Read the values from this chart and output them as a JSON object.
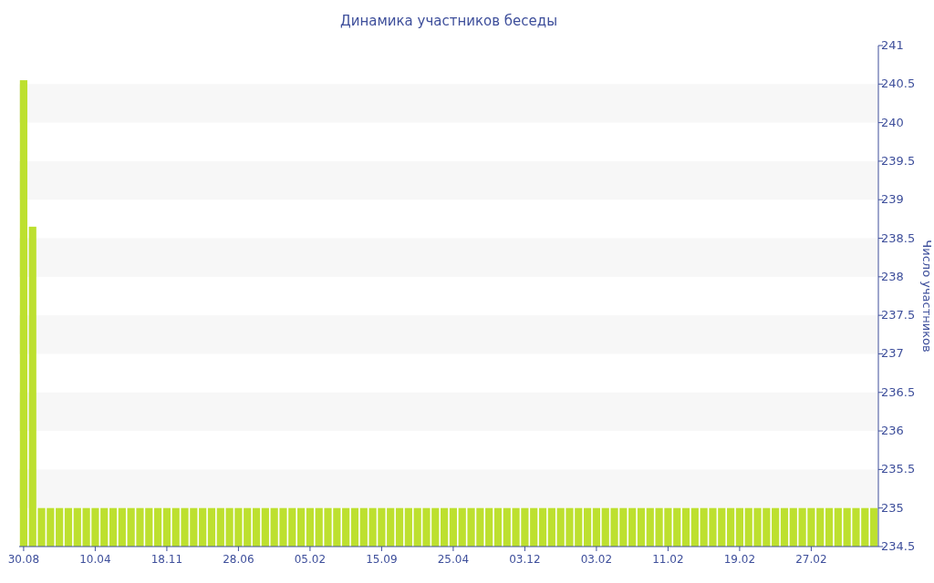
{
  "chart_data": {
    "type": "bar",
    "title": "Динамика участников беседы",
    "ylabel": "Число участников",
    "categories": [
      "30.08",
      null,
      null,
      null,
      null,
      null,
      null,
      null,
      "10.04",
      null,
      null,
      null,
      null,
      null,
      null,
      null,
      "18.11",
      null,
      null,
      null,
      null,
      null,
      null,
      null,
      "28.06",
      null,
      null,
      null,
      null,
      null,
      null,
      null,
      "05.02",
      null,
      null,
      null,
      null,
      null,
      null,
      null,
      "15.09",
      null,
      null,
      null,
      null,
      null,
      null,
      null,
      "25.04",
      null,
      null,
      null,
      null,
      null,
      null,
      null,
      "03.12",
      null,
      null,
      null,
      null,
      null,
      null,
      null,
      "03.02",
      null,
      null,
      null,
      null,
      null,
      null,
      null,
      "11.02",
      null,
      null,
      null,
      null,
      null,
      null,
      null,
      "19.02",
      null,
      null,
      null,
      null,
      null,
      null,
      null,
      "27.02",
      null,
      null,
      null,
      null,
      null,
      null,
      null
    ],
    "values": [
      240.55,
      238.65,
      235,
      235,
      235,
      235,
      235,
      235,
      235,
      235,
      235,
      235,
      235,
      235,
      235,
      235,
      235,
      235,
      235,
      235,
      235,
      235,
      235,
      235,
      235,
      235,
      235,
      235,
      235,
      235,
      235,
      235,
      235,
      235,
      235,
      235,
      235,
      235,
      235,
      235,
      235,
      235,
      235,
      235,
      235,
      235,
      235,
      235,
      235,
      235,
      235,
      235,
      235,
      235,
      235,
      235,
      235,
      235,
      235,
      235,
      235,
      235,
      235,
      235,
      235,
      235,
      235,
      235,
      235,
      235,
      235,
      235,
      235,
      235,
      235,
      235,
      235,
      235,
      235,
      235,
      235,
      235,
      235,
      235,
      235,
      235,
      235,
      235,
      235,
      235,
      235,
      235,
      235,
      235,
      235,
      235
    ],
    "color": "#bde02f",
    "ylim": [
      234.5,
      241
    ],
    "yticks": [
      234.5,
      235,
      235.5,
      236,
      236.5,
      237,
      237.5,
      238,
      238.5,
      239,
      239.5,
      240,
      240.5,
      241
    ],
    "bands": [
      {
        "axis": "y",
        "from": 235,
        "to": 235.5,
        "color": "#f7f7f7"
      },
      {
        "axis": "y",
        "from": 236,
        "to": 236.5,
        "color": "#f7f7f7"
      },
      {
        "axis": "y",
        "from": 237,
        "to": 237.5,
        "color": "#f7f7f7"
      },
      {
        "axis": "y",
        "from": 238,
        "to": 238.5,
        "color": "#f7f7f7"
      },
      {
        "axis": "y",
        "from": 239,
        "to": 239.5,
        "color": "#f7f7f7"
      },
      {
        "axis": "y",
        "from": 240,
        "to": 240.5,
        "color": "#f7f7f7"
      }
    ]
  }
}
